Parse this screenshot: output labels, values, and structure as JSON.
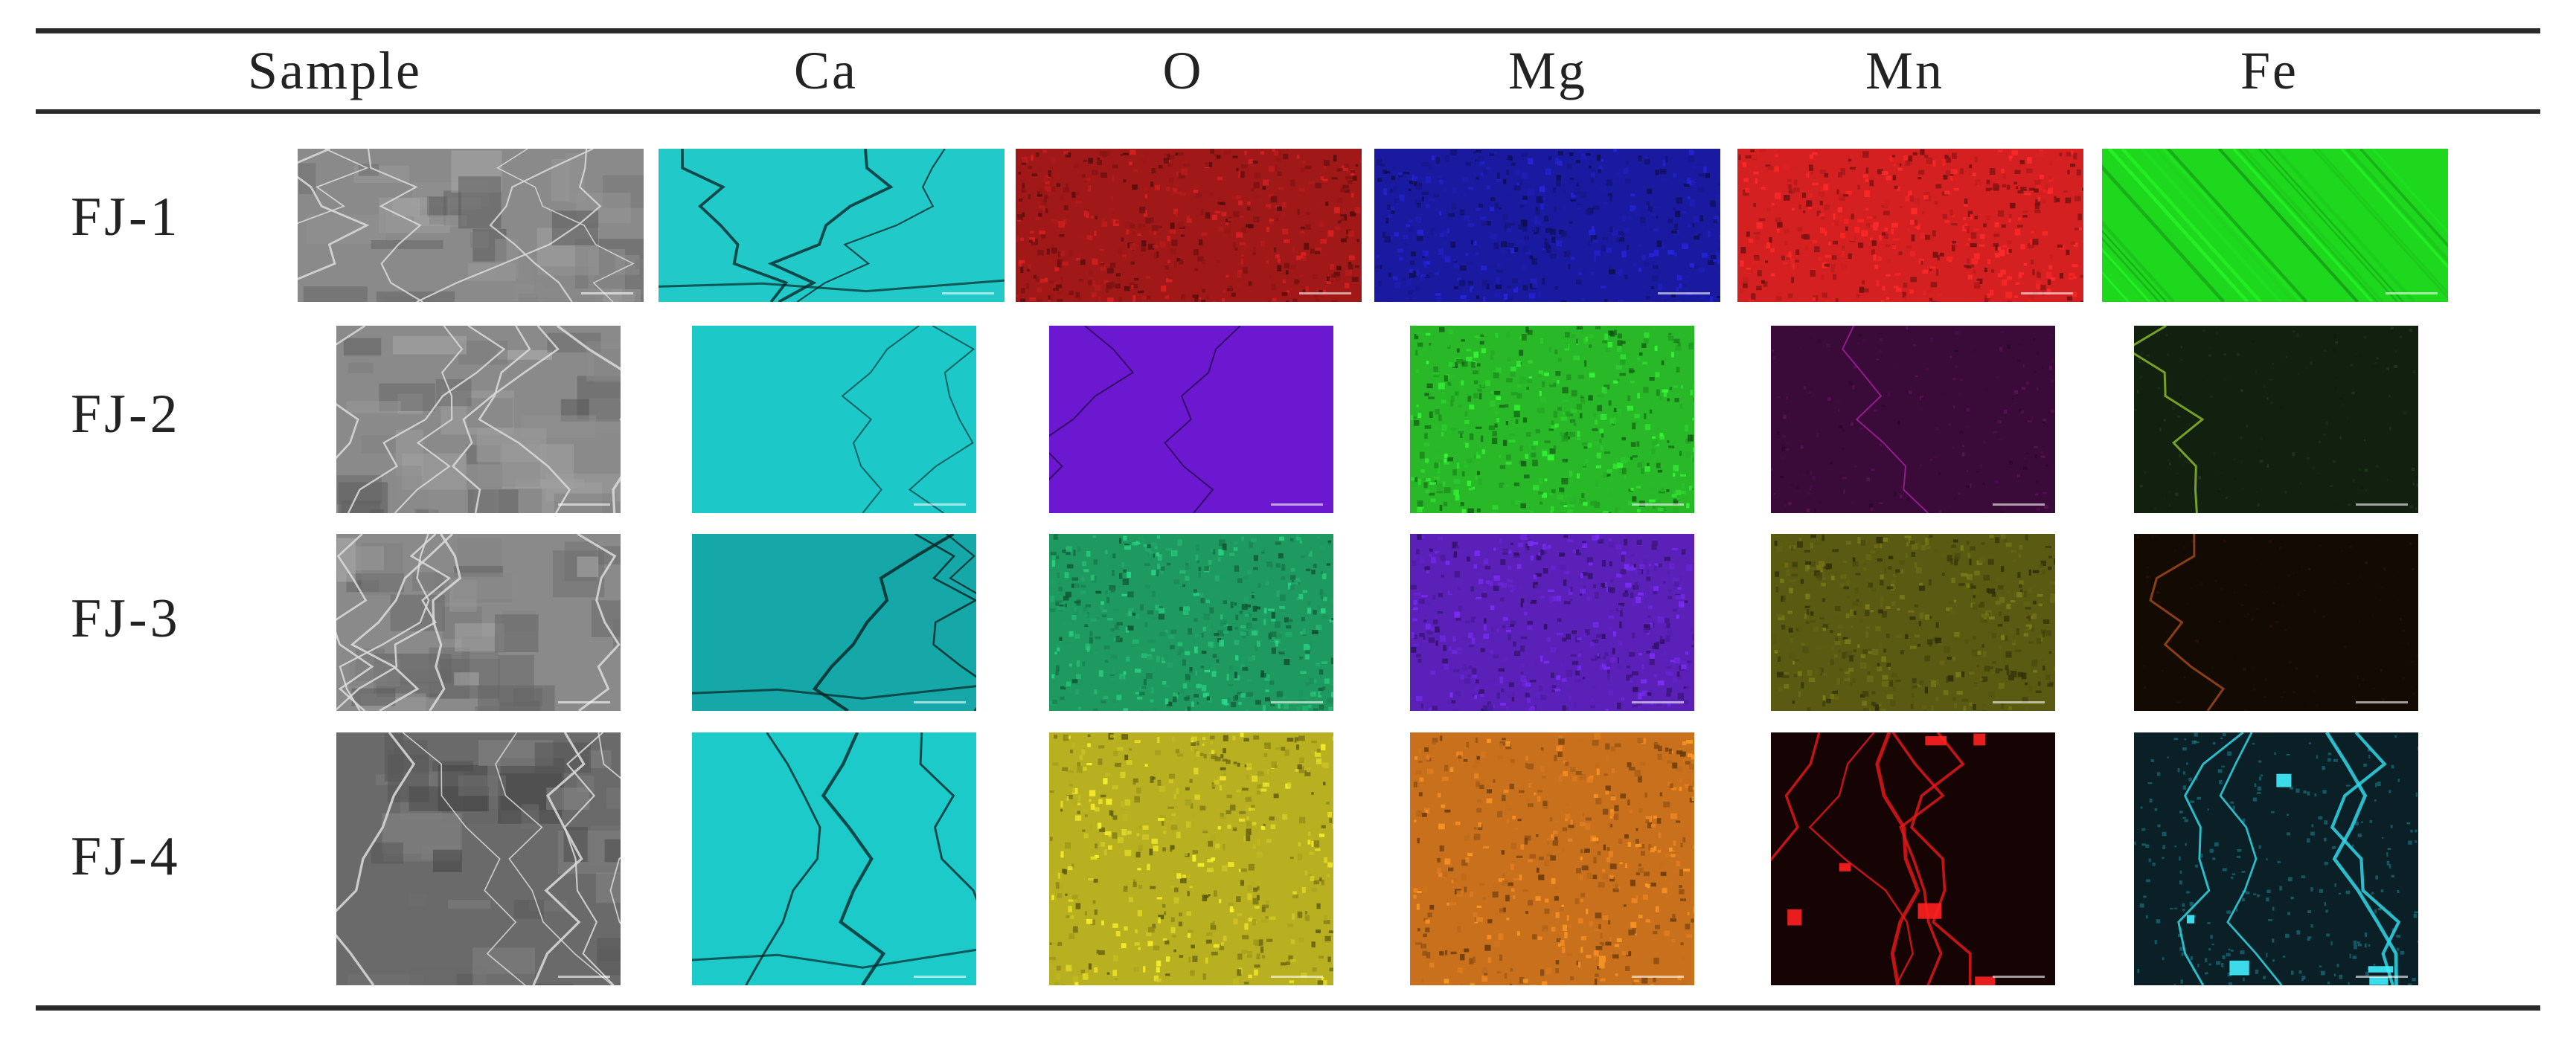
{
  "table": {
    "headers": [
      "Sample",
      "Ca",
      "O",
      "Mg",
      "Mn",
      "Fe"
    ],
    "rows": [
      {
        "label": "FJ-1",
        "tiles": [
          {
            "element": "sem",
            "color": "#8a8a8a",
            "style": "sem"
          },
          {
            "element": "Ca",
            "color": "#22c9c9",
            "style": "cracks"
          },
          {
            "element": "O",
            "color": "#a01818",
            "style": "noise"
          },
          {
            "element": "Mg",
            "color": "#1a1aa0",
            "style": "noise"
          },
          {
            "element": "Mn",
            "color": "#d42020",
            "style": "noise"
          },
          {
            "element": "Fe",
            "color": "#1ed81e",
            "style": "streaks"
          }
        ]
      },
      {
        "label": "FJ-2",
        "tiles": [
          {
            "element": "sem",
            "color": "#8a8a8a",
            "style": "sem"
          },
          {
            "element": "Ca",
            "color": "#1cc8c8",
            "style": "smooth"
          },
          {
            "element": "O",
            "color": "#6b18d0",
            "style": "smooth"
          },
          {
            "element": "Mg",
            "color": "#28b828",
            "style": "noise"
          },
          {
            "element": "Mn",
            "color": "#3a0a38",
            "style": "dark"
          },
          {
            "element": "Fe",
            "color": "#122010",
            "style": "darkveins"
          }
        ]
      },
      {
        "label": "FJ-3",
        "tiles": [
          {
            "element": "sem",
            "color": "#8a8a8a",
            "style": "sem"
          },
          {
            "element": "Ca",
            "color": "#16a8a8",
            "style": "cracks"
          },
          {
            "element": "O",
            "color": "#1e9a60",
            "style": "noise"
          },
          {
            "element": "Mg",
            "color": "#5a20b8",
            "style": "noise"
          },
          {
            "element": "Mn",
            "color": "#5a5a12",
            "style": "noise"
          },
          {
            "element": "Fe",
            "color": "#140a04",
            "style": "darkveins"
          }
        ]
      },
      {
        "label": "FJ-4",
        "tiles": [
          {
            "element": "sem",
            "color": "#6a6a6a",
            "style": "sem"
          },
          {
            "element": "Ca",
            "color": "#1ccaca",
            "style": "cracks"
          },
          {
            "element": "O",
            "color": "#b8b020",
            "style": "noise"
          },
          {
            "element": "Mg",
            "color": "#c8701c",
            "style": "noise"
          },
          {
            "element": "Mn",
            "color": "#160404",
            "style": "redveins"
          },
          {
            "element": "Fe",
            "color": "#0a2026",
            "style": "cyanveins"
          }
        ]
      }
    ]
  }
}
